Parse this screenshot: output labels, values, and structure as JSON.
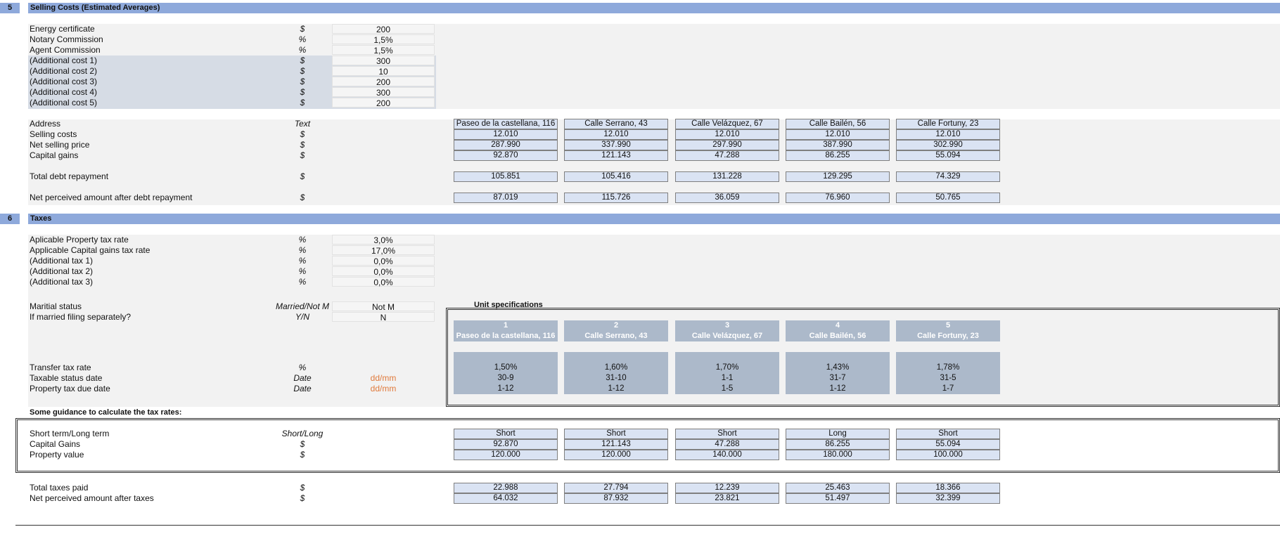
{
  "section5": {
    "number": "5",
    "title": "Selling Costs (Estimated Averages)",
    "inputs": [
      {
        "label": "Energy certificate",
        "unit": "$",
        "value": "200"
      },
      {
        "label": "Notary Commission",
        "unit": "%",
        "value": "1,5%"
      },
      {
        "label": "Agent Commission",
        "unit": "%",
        "value": "1,5%"
      },
      {
        "label": "(Additional cost 1)",
        "unit": "$",
        "value": "300"
      },
      {
        "label": "(Additional cost 2)",
        "unit": "$",
        "value": "10"
      },
      {
        "label": "(Additional cost 3)",
        "unit": "$",
        "value": "200"
      },
      {
        "label": "(Additional cost 4)",
        "unit": "$",
        "value": "300"
      },
      {
        "label": "(Additional cost 5)",
        "unit": "$",
        "value": "200"
      }
    ],
    "address": {
      "label": "Address",
      "unit": "Text",
      "values": [
        "Paseo de la castellana, 116",
        "Calle Serrano, 43",
        "Calle Velázquez, 67",
        "Calle Bailén, 56",
        "Calle Fortuny, 23"
      ]
    },
    "selling_costs": {
      "label": "Selling costs",
      "unit": "$",
      "values": [
        "12.010",
        "12.010",
        "12.010",
        "12.010",
        "12.010"
      ]
    },
    "net_selling_price": {
      "label": "Net selling price",
      "unit": "$",
      "values": [
        "287.990",
        "337.990",
        "297.990",
        "387.990",
        "302.990"
      ]
    },
    "capital_gains": {
      "label": "Capital gains",
      "unit": "$",
      "values": [
        "92.870",
        "121.143",
        "47.288",
        "86.255",
        "55.094"
      ]
    },
    "total_debt": {
      "label": "Total debt repayment",
      "unit": "$",
      "values": [
        "105.851",
        "105.416",
        "131.228",
        "129.295",
        "74.329"
      ]
    },
    "net_after_debt": {
      "label": "Net perceived amount after debt repayment",
      "unit": "$",
      "values": [
        "87.019",
        "115.726",
        "36.059",
        "76.960",
        "50.765"
      ]
    }
  },
  "section6": {
    "number": "6",
    "title": "Taxes",
    "inputs": [
      {
        "label": "Aplicable Property tax rate",
        "unit": "%",
        "value": "3,0%"
      },
      {
        "label": "Applicable Capital gains tax rate",
        "unit": "%",
        "value": "17,0%"
      },
      {
        "label": "(Additional tax 1)",
        "unit": "%",
        "value": "0,0%"
      },
      {
        "label": "(Additional tax 2)",
        "unit": "%",
        "value": "0,0%"
      },
      {
        "label": "(Additional tax 3)",
        "unit": "%",
        "value": "0,0%"
      }
    ],
    "marital_status": {
      "label": "Maritial status",
      "unit": "Married/Not M",
      "value": "Not M"
    },
    "filing_separately": {
      "label": "If married filing separately?",
      "unit": "Y/N",
      "value": "N"
    },
    "unit_specs": {
      "title": "Unit specifications",
      "numbers": [
        "1",
        "2",
        "3",
        "4",
        "5"
      ],
      "names": [
        "Paseo de la castellana, 116",
        "Calle Serrano, 43",
        "Calle Velázquez, 67",
        "Calle Bailén, 56",
        "Calle Fortuny, 23"
      ]
    },
    "transfer_tax": {
      "label": "Transfer tax rate",
      "unit": "%",
      "values": [
        "1,50%",
        "1,60%",
        "1,70%",
        "1,43%",
        "1,78%"
      ]
    },
    "taxable_status_date": {
      "label": "Taxable status date",
      "unit": "Date",
      "placeholder": "dd/mm",
      "values": [
        "30-9",
        "31-10",
        "1-1",
        "31-7",
        "31-5"
      ]
    },
    "property_tax_due": {
      "label": "Property tax due date",
      "unit": "Date",
      "placeholder": "dd/mm",
      "values": [
        "1-12",
        "1-12",
        "1-5",
        "1-12",
        "1-7"
      ]
    },
    "guidance_title": "Some guidance to calculate the tax rates:",
    "term": {
      "label": "Short term/Long term",
      "unit": "Short/Long",
      "values": [
        "Short",
        "Short",
        "Short",
        "Long",
        "Short"
      ]
    },
    "capital_gains": {
      "label": "Capital Gains",
      "unit": "$",
      "values": [
        "92.870",
        "121.143",
        "47.288",
        "86.255",
        "55.094"
      ]
    },
    "property_value": {
      "label": "Property value",
      "unit": "$",
      "values": [
        "120.000",
        "120.000",
        "140.000",
        "180.000",
        "100.000"
      ]
    },
    "total_taxes": {
      "label": "Total taxes paid",
      "unit": "$",
      "values": [
        "22.988",
        "27.794",
        "12.239",
        "25.463",
        "18.366"
      ]
    },
    "net_after_taxes": {
      "label": "Net perceived amount after taxes",
      "unit": "$",
      "values": [
        "64.032",
        "87.932",
        "23.821",
        "51.497",
        "32.399"
      ]
    }
  },
  "colors": {
    "section_bar": "#8ea9db",
    "cell_fill": "#dae3f3",
    "spec_header": "#acb9ca",
    "placeholder": "#e07a3c"
  }
}
